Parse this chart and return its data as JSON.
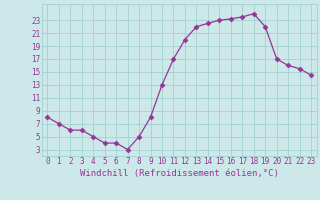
{
  "x": [
    0,
    1,
    2,
    3,
    4,
    5,
    6,
    7,
    8,
    9,
    10,
    11,
    12,
    13,
    14,
    15,
    16,
    17,
    18,
    19,
    20,
    21,
    22,
    23
  ],
  "y": [
    8,
    7,
    6,
    6,
    5,
    4,
    4,
    3,
    5,
    8,
    13,
    17,
    20,
    22,
    22.5,
    23,
    23.2,
    23.5,
    24,
    22,
    17,
    16,
    15.5,
    14.5
  ],
  "line_color": "#993399",
  "marker": "D",
  "marker_size": 2.5,
  "bg_color": "#cce8e8",
  "grid_color": "#99cccc",
  "xlabel": "Windchill (Refroidissement éolien,°C)",
  "xlabel_fontsize": 6.5,
  "ylabel_ticks": [
    3,
    5,
    7,
    9,
    11,
    13,
    15,
    17,
    19,
    21,
    23
  ],
  "xtick_labels": [
    "0",
    "1",
    "2",
    "3",
    "4",
    "5",
    "6",
    "7",
    "8",
    "9",
    "10",
    "11",
    "12",
    "13",
    "14",
    "15",
    "16",
    "17",
    "18",
    "19",
    "20",
    "21",
    "22",
    "23"
  ],
  "ylim": [
    2.0,
    25.5
  ],
  "xlim": [
    -0.5,
    23.5
  ],
  "tick_fontsize": 5.5,
  "tick_color": "#993399",
  "label_color": "#993399"
}
